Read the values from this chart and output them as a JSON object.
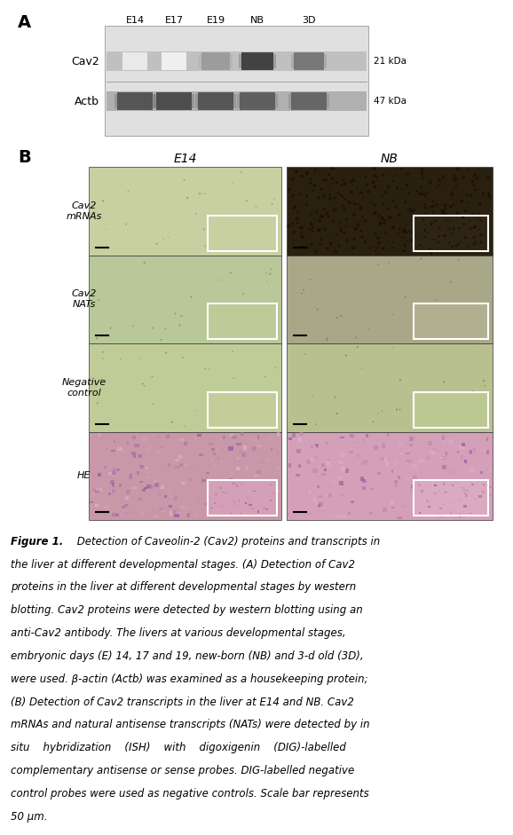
{
  "panel_A_label": "A",
  "panel_B_label": "B",
  "panel_A_columns": [
    "E14",
    "E17",
    "E19",
    "NB",
    "3D"
  ],
  "panel_A_rows": [
    "Cav2",
    "Actb"
  ],
  "panel_A_kda": [
    "21 kDa",
    "47 kDa"
  ],
  "panel_B_col_labels": [
    "E14",
    "NB"
  ],
  "panel_B_row_labels": [
    "Cav2\nmRNAs",
    "Cav2\nNATs",
    "Negative\ncontrol",
    "HE"
  ],
  "caption_bold": "Figure 1.",
  "caption_rest": " Detection of Caveolin-2 (Cav2) proteins and transcripts in the liver at different developmental stages. (A) Detection of Cav2 proteins in the liver at different developmental stages by western blotting. Cav2 proteins were detected by western blotting using an anti-Cav2 antibody. The livers at various developmental stages, embryonic days (E) 14, 17 and 19, new-born (NB) and 3-d old (3D), were used. β-actin (Actb) was examined as a housekeeping protein; (B) Detection of Cav2 transcripts in the liver at E14 and NB. Cav2 mRNAs and natural antisense transcripts (NATs) were detected by in situ    hybridization    (ISH)    with    digoxigenin    (DIG)-labelled complementary antisense or sense probes. DIG-labelled negative control probes were used as negative controls. Scale bar represents 50 μm.",
  "bg_color": "#ffffff",
  "ish_light_green": "#c8cfa0",
  "ish_dark_brown": "#2a2010",
  "ish_medium_green": "#b8c898",
  "ish_nb_nats": "#a8a888",
  "ish_neg_green": "#c0cc98",
  "ish_neg_nb": "#b8c090",
  "he_e14": "#c898a8",
  "he_nb": "#d4a0b8",
  "font_size_caption": 8.5,
  "font_size_labels": 9,
  "font_size_panel": 14
}
